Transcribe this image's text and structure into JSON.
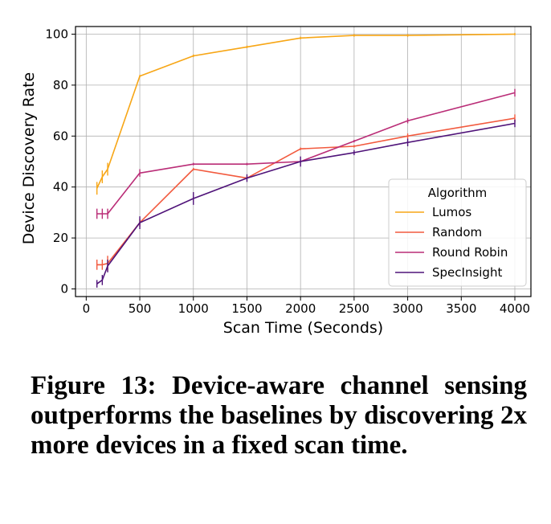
{
  "chart_data": {
    "type": "line",
    "xlabel": "Scan Time (Seconds)",
    "ylabel": "Device Discovery Rate",
    "xlim": [
      -100,
      4150
    ],
    "ylim": [
      -3,
      103
    ],
    "xticks": [
      0,
      500,
      1000,
      1500,
      2000,
      2500,
      3000,
      3500,
      4000
    ],
    "yticks": [
      0,
      20,
      40,
      60,
      80,
      100
    ],
    "grid": true,
    "legend": {
      "title": "Algorithm",
      "placement": "lower right"
    },
    "series": [
      {
        "name": "Lumos",
        "color": "#f7a616",
        "x": [
          100,
          150,
          200,
          500,
          1000,
          1500,
          2000,
          2500,
          3000,
          4000
        ],
        "y": [
          39.5,
          44,
          47,
          83.5,
          91.5,
          95,
          98.5,
          99.5,
          99.5,
          100
        ],
        "err": [
          2,
          2,
          2,
          0,
          0,
          0,
          0,
          0,
          0,
          0
        ]
      },
      {
        "name": "Random",
        "color": "#f25a3e",
        "x": [
          100,
          150,
          200,
          500,
          1000,
          1500,
          2000,
          2500,
          3000,
          4000
        ],
        "y": [
          9.5,
          9.5,
          10,
          26,
          47,
          43.5,
          55,
          56,
          60,
          67
        ],
        "err": [
          1.5,
          1.5,
          2.5,
          1,
          0,
          0,
          0,
          0,
          0.5,
          1
        ]
      },
      {
        "name": "Round Robin",
        "color": "#ba2d77",
        "x": [
          100,
          150,
          200,
          500,
          1000,
          1500,
          2000,
          2500,
          3000,
          4000
        ],
        "y": [
          29.5,
          29.5,
          29.5,
          45.5,
          49,
          49,
          50,
          58,
          66,
          77
        ],
        "err": [
          1.5,
          1.5,
          1.5,
          1,
          0,
          0,
          0,
          0,
          0.5,
          1
        ]
      },
      {
        "name": "SpecInsight",
        "color": "#4f1379",
        "x": [
          100,
          150,
          200,
          500,
          1000,
          1500,
          2000,
          2500,
          3000,
          4000
        ],
        "y": [
          2,
          3.5,
          9,
          26,
          35.5,
          43.5,
          50,
          53.5,
          57.5,
          65
        ],
        "err": [
          1,
          1.5,
          2,
          2,
          2,
          1,
          1.5,
          0.5,
          1,
          1
        ]
      }
    ]
  },
  "caption": "Figure 13: Device-aware channel sensing outperforms the baselines by discovering 2x more devices in a fixed scan time."
}
